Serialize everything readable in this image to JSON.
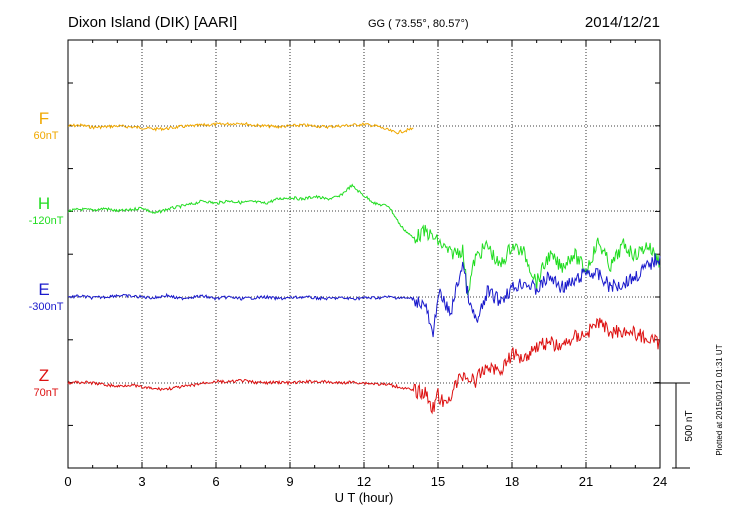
{
  "header": {
    "station": "Dixon Island (DIK)  [AARI]",
    "coords": "GG ( 73.55°,  80.57°)",
    "date": "2014/12/21"
  },
  "side_note": "Plotted at 2015/01/21 01:31  UT",
  "chart_data": {
    "type": "line",
    "title": "Dixon Island (DIK)  [AARI]",
    "xlabel": "U T (hour)",
    "x_ticks": [
      "0",
      "3",
      "6",
      "9",
      "12",
      "15",
      "18",
      "21",
      "24"
    ],
    "xlim": [
      0,
      24
    ],
    "scale_bar": "500 nT",
    "series": [
      {
        "name": "F",
        "baseline_label": "60nT",
        "color": "#f0a800",
        "baseline_index": 0,
        "x": [
          0,
          0.5,
          1,
          1.5,
          2,
          2.5,
          3,
          3.5,
          4,
          4.5,
          5,
          5.5,
          6,
          6.5,
          7,
          7.5,
          8,
          8.5,
          9,
          9.5,
          10,
          10.5,
          11,
          11.5,
          12,
          12.5,
          13,
          13.3,
          13.6,
          14
        ],
        "values": [
          0,
          5,
          -8,
          -5,
          0,
          -5,
          -10,
          -18,
          -15,
          -5,
          0,
          5,
          10,
          12,
          18,
          5,
          0,
          -5,
          0,
          5,
          0,
          -5,
          0,
          5,
          10,
          0,
          -25,
          -40,
          -30,
          -15
        ]
      },
      {
        "name": "H",
        "baseline_label": "-120nT",
        "color": "#22dd22",
        "baseline_index": 1,
        "x": [
          0,
          0.5,
          1,
          1.5,
          2,
          2.5,
          3,
          3.5,
          4,
          4.5,
          5,
          5.5,
          6,
          6.5,
          7,
          7.5,
          8,
          8.5,
          9,
          9.5,
          10,
          10.5,
          11,
          11.5,
          12,
          12.5,
          13,
          13.5,
          14,
          14.5,
          15,
          15.5,
          16,
          16.2,
          16.5,
          17,
          17.5,
          18,
          18.5,
          19,
          19.5,
          20,
          20.5,
          21,
          21.5,
          22,
          22.5,
          23,
          23.5,
          24
        ],
        "values": [
          0,
          10,
          5,
          15,
          0,
          5,
          20,
          -15,
          10,
          25,
          40,
          60,
          45,
          60,
          50,
          55,
          45,
          70,
          80,
          70,
          85,
          70,
          85,
          150,
          90,
          40,
          30,
          -90,
          -160,
          -120,
          -180,
          -250,
          -230,
          -480,
          -280,
          -200,
          -330,
          -200,
          -250,
          -420,
          -260,
          -330,
          -250,
          -350,
          -180,
          -330,
          -200,
          -260,
          -200,
          -300
        ]
      },
      {
        "name": "E",
        "baseline_label": "-300nT",
        "color": "#1a1acc",
        "baseline_index": 2,
        "x": [
          0,
          0.5,
          1,
          1.5,
          2,
          2.5,
          3,
          3.5,
          4,
          4.5,
          5,
          5.5,
          6,
          6.5,
          7,
          7.5,
          8,
          8.5,
          9,
          9.5,
          10,
          10.5,
          11,
          11.5,
          12,
          12.5,
          13,
          13.5,
          14,
          14.5,
          14.8,
          15,
          15.5,
          16,
          16.3,
          16.6,
          17,
          17.5,
          18,
          18.5,
          19,
          19.5,
          20,
          20.5,
          21,
          21.5,
          22,
          22.5,
          23,
          23.5,
          24
        ],
        "values": [
          0,
          5,
          -5,
          0,
          10,
          5,
          0,
          -5,
          10,
          -10,
          0,
          5,
          -10,
          0,
          -10,
          -5,
          0,
          -10,
          -5,
          0,
          -5,
          -10,
          -5,
          -10,
          -5,
          -5,
          0,
          -5,
          -10,
          -50,
          -250,
          30,
          -100,
          200,
          -60,
          -150,
          30,
          -20,
          50,
          90,
          40,
          120,
          60,
          80,
          150,
          130,
          60,
          80,
          120,
          180,
          240
        ]
      },
      {
        "name": "Z",
        "baseline_label": "70nT",
        "color": "#dd1111",
        "baseline_index": 3,
        "x": [
          0,
          0.5,
          1,
          1.5,
          2,
          2.5,
          3,
          3.5,
          4,
          4.5,
          5,
          5.5,
          6,
          6.5,
          7,
          7.5,
          8,
          8.5,
          9,
          9.5,
          10,
          10.5,
          11,
          11.5,
          12,
          12.5,
          13,
          13.5,
          14,
          14.5,
          14.8,
          15,
          15.3,
          15.6,
          16,
          16.5,
          17,
          17.5,
          18,
          18.5,
          19,
          19.5,
          20,
          20.5,
          21,
          21.5,
          22,
          22.5,
          23,
          23.5,
          24
        ],
        "values": [
          0,
          5,
          0,
          -10,
          -20,
          -10,
          -25,
          -35,
          -35,
          -25,
          -15,
          0,
          10,
          5,
          15,
          5,
          0,
          5,
          0,
          5,
          10,
          5,
          0,
          5,
          0,
          -5,
          -10,
          -25,
          -45,
          -60,
          -150,
          -70,
          -140,
          -40,
          50,
          10,
          100,
          70,
          170,
          150,
          220,
          240,
          210,
          270,
          290,
          360,
          300,
          310,
          290,
          260,
          230
        ]
      }
    ]
  }
}
